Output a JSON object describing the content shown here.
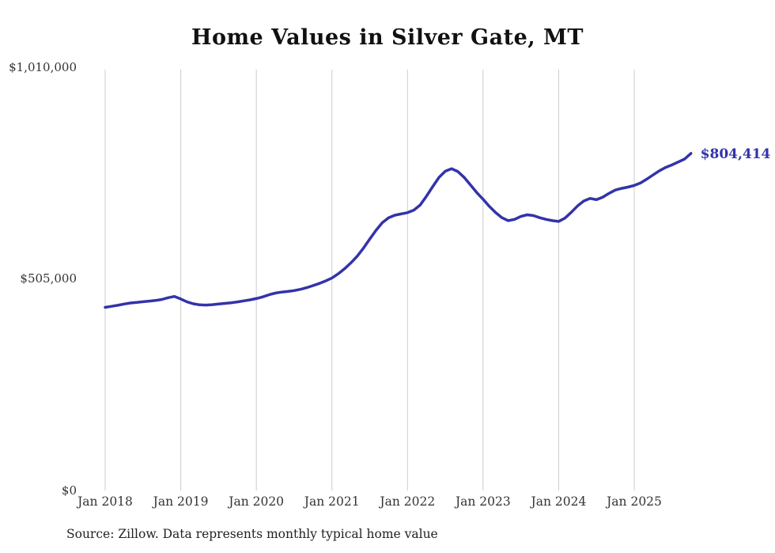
{
  "title": "Home Values in Silver Gate, MT",
  "source_note": "Source: Zillow. Data represents monthly typical home value",
  "end_value_label": "$804,414",
  "colors": {
    "line": "#3333aa",
    "grid": "#cccccc",
    "axis_text": "#333333",
    "title_text": "#111111",
    "end_label_text": "#3333aa"
  },
  "chart_data": {
    "type": "line",
    "title": "Home Values in Silver Gate, MT",
    "x_unit": "month",
    "x_start": "2018-01",
    "x_end": "2025-10",
    "x_tick_labels": [
      "Jan 2018",
      "Jan 2019",
      "Jan 2020",
      "Jan 2021",
      "Jan 2022",
      "Jan 2023",
      "Jan 2024",
      "Jan 2025"
    ],
    "y_ticks": [
      {
        "value": 1010000,
        "label": "$1,010,000"
      },
      {
        "value": 505000,
        "label": "$505,000"
      },
      {
        "value": 0,
        "label": "$0"
      }
    ],
    "ylim": [
      0,
      1010000
    ],
    "grid": "vertical-only",
    "legend": "none",
    "annotation": {
      "text": "$804,414",
      "position": "end-of-line"
    },
    "series": [
      {
        "name": "Monthly typical home value",
        "values": [
          437000,
          439500,
          442000,
          445000,
          447500,
          449000,
          450500,
          452000,
          453500,
          456000,
          460000,
          463000,
          457000,
          450000,
          445500,
          443000,
          442500,
          443500,
          445000,
          446500,
          448000,
          450000,
          452500,
          455000,
          458000,
          462000,
          467000,
          471000,
          473500,
          475000,
          477000,
          480000,
          484000,
          489000,
          494000,
          500000,
          507000,
          517000,
          529000,
          543000,
          559000,
          578000,
          600000,
          621000,
          639000,
          651000,
          657000,
          660000,
          663000,
          669000,
          681000,
          702000,
          725000,
          747000,
          762000,
          768000,
          761000,
          747000,
          729000,
          711000,
          695000,
          678000,
          663000,
          651000,
          644000,
          647000,
          654000,
          658000,
          656000,
          651000,
          647000,
          644000,
          642000,
          650000,
          664000,
          679000,
          691000,
          697000,
          694000,
          700000,
          709000,
          717000,
          721000,
          724000,
          728000,
          734000,
          743000,
          753000,
          763000,
          771000,
          777000,
          784000,
          791000,
          804414
        ]
      }
    ]
  }
}
